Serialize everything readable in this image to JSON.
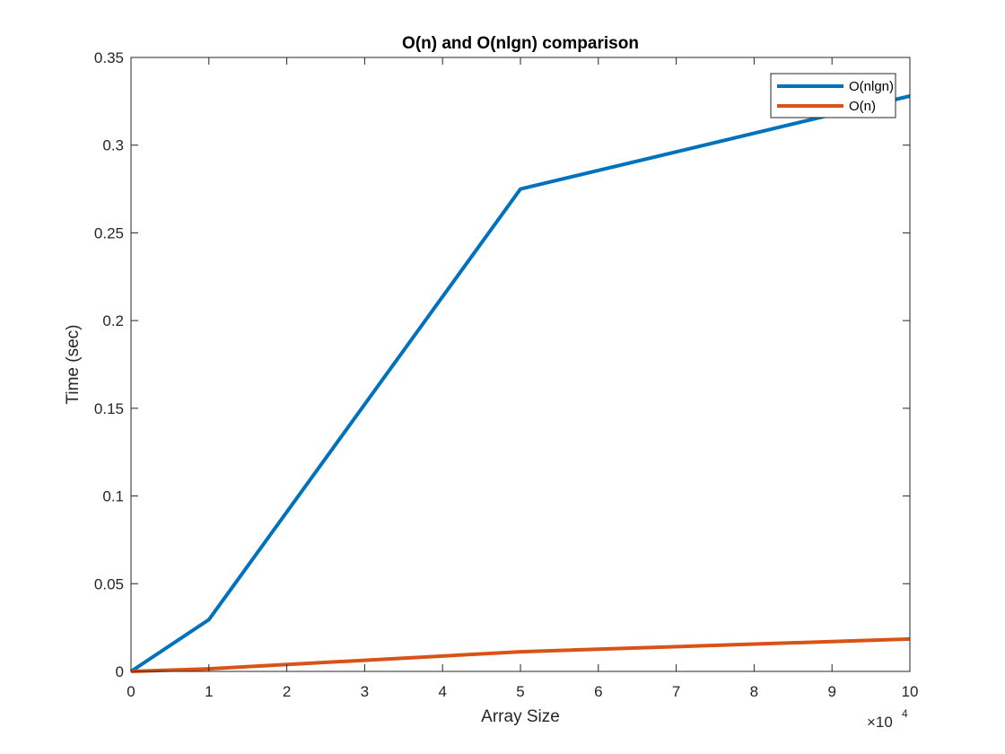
{
  "chart_data": {
    "type": "line",
    "title": "O(n) and O(nlgn) comparison",
    "xlabel": "Array Size",
    "ylabel": "Time (sec)",
    "x_exponent_label": "×10",
    "x_exponent_power": "4",
    "xlim": [
      0,
      100000
    ],
    "ylim": [
      0,
      0.35
    ],
    "x_ticks": [
      0,
      10000,
      20000,
      30000,
      40000,
      50000,
      60000,
      70000,
      80000,
      90000,
      100000
    ],
    "x_tick_labels": [
      "0",
      "1",
      "2",
      "3",
      "4",
      "5",
      "6",
      "7",
      "8",
      "9",
      "10"
    ],
    "y_ticks": [
      0,
      0.05,
      0.1,
      0.15,
      0.2,
      0.25,
      0.3,
      0.35
    ],
    "y_tick_labels": [
      "0",
      "0.05",
      "0.1",
      "0.15",
      "0.2",
      "0.25",
      "0.3",
      "0.35"
    ],
    "grid": false,
    "legend_position": "top-right",
    "series": [
      {
        "name": "O(nlgn)",
        "color": "#0072BD",
        "x": [
          0,
          10000,
          50000,
          100000
        ],
        "y": [
          0,
          0.0295,
          0.275,
          0.328
        ]
      },
      {
        "name": "O(n)",
        "color": "#D95319",
        "x": [
          0,
          10000,
          50000,
          100000
        ],
        "y": [
          0,
          0.0015,
          0.0112,
          0.0185
        ]
      }
    ]
  }
}
